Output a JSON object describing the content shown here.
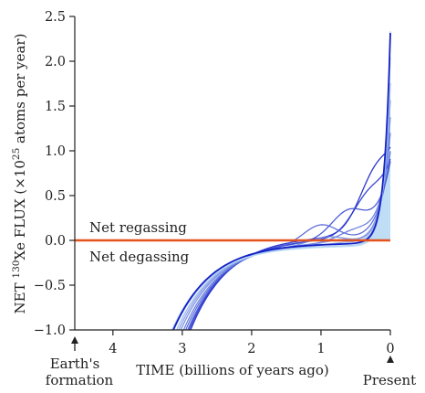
{
  "chart_data": {
    "type": "line",
    "xlabel": "TIME (billions of years ago)",
    "ylabel": {
      "prefix": "NET ",
      "sup1": "130",
      "mid": "Xe FLUX (×10",
      "sup2": "25",
      "suffix": " atoms per year)"
    },
    "xlim": [
      4.55,
      0
    ],
    "ylim": [
      -1.0,
      2.5
    ],
    "x_ticks": [
      4,
      3,
      2,
      1,
      0
    ],
    "x_tick_labels": [
      "4",
      "3",
      "2",
      "1",
      "0"
    ],
    "y_ticks": [
      -1.0,
      -0.5,
      0.0,
      0.5,
      1.0,
      1.5,
      2.0,
      2.5
    ],
    "y_tick_labels": [
      "−1.0",
      "−0.5",
      "0.0",
      "0.5",
      "1.0",
      "1.5",
      "2.0",
      "2.5"
    ],
    "annotations": {
      "regassing": "Net regassing",
      "degassing": "Net degassing",
      "formation_line1": "Earth's",
      "formation_line2": "formation",
      "present": "Present"
    },
    "zero_line": {
      "y": 0.0,
      "color": "#e4531b"
    },
    "ensemble": {
      "description_color_light": "#b9dcf4",
      "description_color_dark": "#1520c8",
      "curves": [
        {
          "start_x": 3.15,
          "plateau": -0.06,
          "amp": 2.4,
          "k": 12.0,
          "bump": 0.0,
          "bump_x": 0.8
        },
        {
          "start_x": 3.12,
          "plateau": -0.05,
          "amp": 2.1,
          "k": 11.0,
          "bump": 0.0,
          "bump_x": 0.8
        },
        {
          "start_x": 3.08,
          "plateau": -0.04,
          "amp": 1.8,
          "k": 10.0,
          "bump": 0.03,
          "bump_x": 0.6
        },
        {
          "start_x": 3.05,
          "plateau": -0.03,
          "amp": 1.6,
          "k": 9.0,
          "bump": 0.05,
          "bump_x": 0.7
        },
        {
          "start_x": 3.02,
          "plateau": -0.02,
          "amp": 1.4,
          "k": 8.0,
          "bump": 0.08,
          "bump_x": 0.9
        },
        {
          "start_x": 2.98,
          "plateau": -0.01,
          "amp": 1.2,
          "k": 7.0,
          "bump": 0.12,
          "bump_x": 0.5
        },
        {
          "start_x": 2.95,
          "plateau": 0.0,
          "amp": 1.0,
          "k": 6.0,
          "bump": 0.2,
          "bump_x": 1.0
        },
        {
          "start_x": 2.92,
          "plateau": 0.02,
          "amp": 0.85,
          "k": 5.0,
          "bump": 0.3,
          "bump_x": 0.6
        },
        {
          "start_x": 2.9,
          "plateau": 0.03,
          "amp": 0.7,
          "k": 4.5,
          "bump": 0.38,
          "bump_x": 0.3
        },
        {
          "start_x": 2.88,
          "plateau": 0.05,
          "amp": 0.6,
          "k": 4.0,
          "bump": 0.55,
          "bump_x": 0.2
        }
      ],
      "main_curve": {
        "start_x": 3.13,
        "plateau": -0.03,
        "amp": 2.35,
        "k": 11.5
      }
    }
  }
}
